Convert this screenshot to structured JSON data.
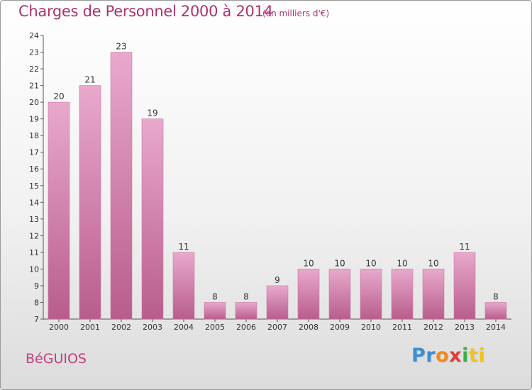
{
  "header": {
    "title": "Charges de Personnel 2000 à 2014",
    "subtitle": "(en milliers d'€)"
  },
  "footer": {
    "location": "BéGUIOS",
    "logo_parts": [
      "Pr",
      "o",
      "x",
      "i",
      "ti"
    ]
  },
  "colors": {
    "bar_light": "#e9a9cc",
    "bar_dark": "#b85d8c",
    "title": "#b0306e"
  },
  "chart_data": {
    "type": "bar",
    "title": "Charges de Personnel 2000 à 2014",
    "subtitle": "(en milliers d'€)",
    "categories": [
      "2000",
      "2001",
      "2002",
      "2003",
      "2004",
      "2005",
      "2006",
      "2007",
      "2008",
      "2009",
      "2010",
      "2011",
      "2012",
      "2013",
      "2014"
    ],
    "values": [
      20,
      21,
      23,
      19,
      11,
      8,
      8,
      9,
      10,
      10,
      10,
      10,
      10,
      11,
      8
    ],
    "ylim": [
      7,
      24
    ],
    "yticks": [
      "7",
      "8",
      "9",
      "10",
      "11",
      "12",
      "13",
      "14",
      "15",
      "16",
      "17",
      "18",
      "19",
      "20",
      "21",
      "22",
      "23",
      "24"
    ],
    "grid": false,
    "legend": "none"
  }
}
